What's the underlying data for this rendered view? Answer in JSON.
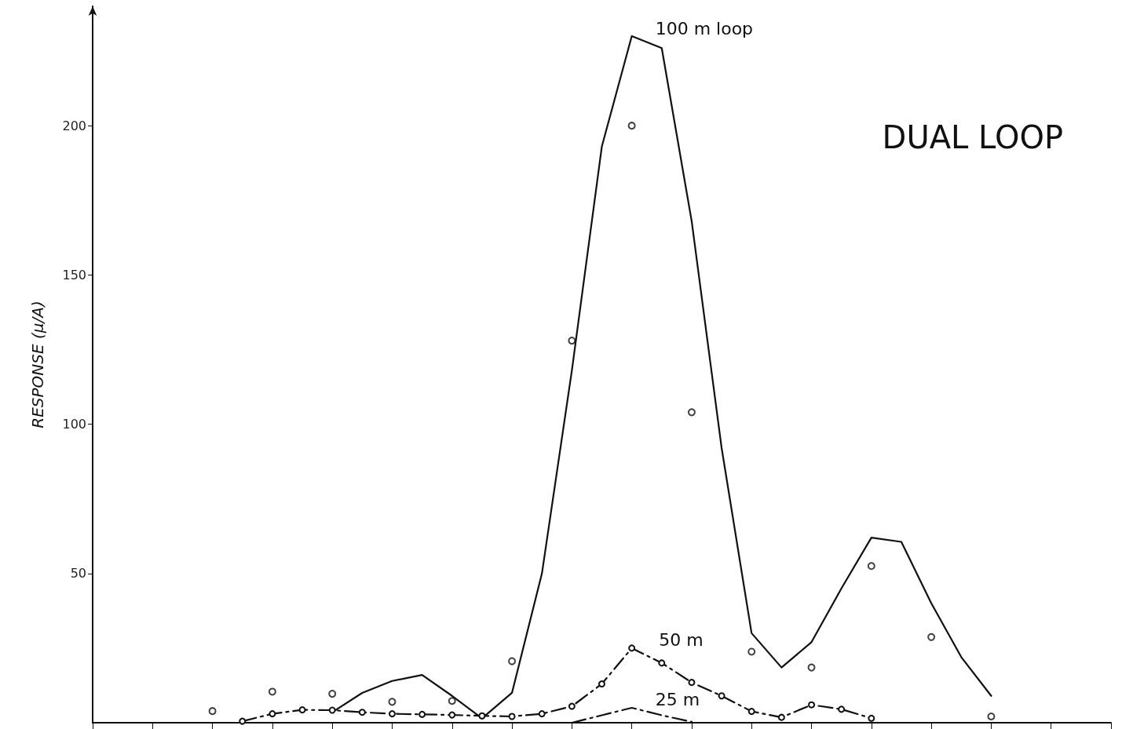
{
  "chart_data": {
    "type": "line",
    "title": "DUAL LOOP",
    "ylabel": "RESPONSE (μ/A)",
    "categories": [
      null,
      null,
      null,
      null,
      null,
      null,
      null,
      null,
      null,
      null,
      null,
      null,
      null,
      null,
      null,
      null,
      null,
      null,
      null,
      null,
      null,
      null,
      null,
      null,
      null,
      null,
      null,
      null,
      null,
      null,
      null,
      null,
      null,
      null,
      null
    ],
    "ylim": [
      0,
      240
    ],
    "yticks": [
      50,
      100,
      150,
      200
    ],
    "tick_labels": "y",
    "grid": false,
    "legend": false,
    "series": [
      {
        "name": "100 m loop",
        "color": "#111111",
        "line_style": "solid",
        "marker": "none",
        "values": [
          null,
          null,
          null,
          null,
          null,
          null,
          null,
          null,
          3.5,
          10,
          14,
          16,
          9,
          1.5,
          10,
          50,
          118,
          193,
          230,
          226,
          168,
          92,
          30,
          18.5,
          27,
          45,
          62,
          60.6,
          40,
          22,
          9,
          null,
          null,
          null,
          null
        ]
      },
      {
        "name": "50 m",
        "color": "#111111",
        "line_style": "dashed",
        "marker": "circle",
        "values": [
          null,
          null,
          null,
          null,
          null,
          0.5,
          3,
          4.3,
          4.2,
          3.5,
          3,
          2.8,
          2.6,
          2.3,
          2.1,
          3,
          5.5,
          13,
          25,
          20,
          13.5,
          9,
          3.8,
          1.8,
          6,
          4.5,
          1.5,
          null,
          null,
          null,
          null,
          null,
          null,
          null,
          null
        ]
      },
      {
        "name": "25 m",
        "color": "#111111",
        "line_style": "dashed",
        "marker": "none",
        "values": [
          null,
          null,
          null,
          null,
          null,
          null,
          null,
          null,
          null,
          null,
          null,
          null,
          null,
          null,
          null,
          null,
          0,
          2.5,
          5,
          2.5,
          0.3,
          null,
          null,
          null,
          null,
          null,
          null,
          null,
          null,
          null,
          null,
          null,
          null,
          null,
          null
        ]
      },
      {
        "type": "scatter",
        "color": "#111111",
        "marker": "circle",
        "values": [
          null,
          null,
          null,
          null,
          3.9,
          null,
          10.4,
          null,
          9.7,
          null,
          7,
          null,
          7.3,
          null,
          20.6,
          null,
          128,
          null,
          200,
          null,
          104,
          null,
          23.8,
          null,
          18.5,
          null,
          52.5,
          null,
          28.7,
          null,
          2.1,
          null,
          null,
          null,
          null
        ]
      }
    ]
  }
}
